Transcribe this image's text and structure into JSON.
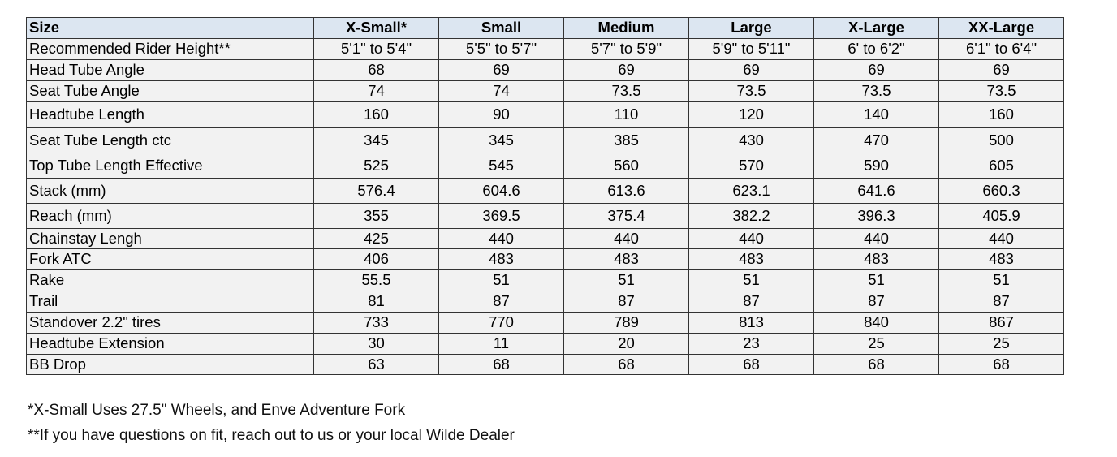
{
  "table": {
    "header": [
      "Size",
      "X-Small*",
      "Small",
      "Medium",
      "Large",
      "X-Large",
      "XX-Large"
    ],
    "rows": [
      [
        "Recommended Rider Height**",
        "5'1\" to 5'4\"",
        "5'5\" to 5'7\"",
        "5'7\" to 5'9\"",
        "5'9\" to 5'11\"",
        "6' to 6'2\"",
        "6'1\" to 6'4\""
      ],
      [
        "Head Tube Angle",
        "68",
        "69",
        "69",
        "69",
        "69",
        "69"
      ],
      [
        "Seat Tube Angle",
        "74",
        "74",
        "73.5",
        "73.5",
        "73.5",
        "73.5"
      ],
      [
        "Headtube Length",
        "160",
        "90",
        "110",
        "120",
        "140",
        "160"
      ],
      [
        "Seat Tube Length ctc",
        "345",
        "345",
        "385",
        "430",
        "470",
        "500"
      ],
      [
        "Top Tube Length Effective",
        "525",
        "545",
        "560",
        "570",
        "590",
        "605"
      ],
      [
        "Stack (mm)",
        "576.4",
        "604.6",
        "613.6",
        "623.1",
        "641.6",
        "660.3"
      ],
      [
        "Reach (mm)",
        "355",
        "369.5",
        "375.4",
        "382.2",
        "396.3",
        "405.9"
      ],
      [
        "Chainstay Lengh",
        "425",
        "440",
        "440",
        "440",
        "440",
        "440"
      ],
      [
        "Fork ATC",
        "406",
        "483",
        "483",
        "483",
        "483",
        "483"
      ],
      [
        "Rake",
        "55.5",
        "51",
        "51",
        "51",
        "51",
        "51"
      ],
      [
        "Trail",
        "81",
        "87",
        "87",
        "87",
        "87",
        "87"
      ],
      [
        "Standover 2.2\" tires",
        "733",
        "770",
        "789",
        "813",
        "840",
        "867"
      ],
      [
        "Headtube Extension",
        "30",
        "11",
        "20",
        "23",
        "25",
        "25"
      ],
      [
        "BB Drop",
        "63",
        "68",
        "68",
        "68",
        "68",
        "68"
      ]
    ]
  },
  "footnotes": [
    "*X-Small Uses 27.5\" Wheels, and Enve Adventure Fork",
    "**If you have questions on fit, reach out to us or your local Wilde Dealer"
  ]
}
